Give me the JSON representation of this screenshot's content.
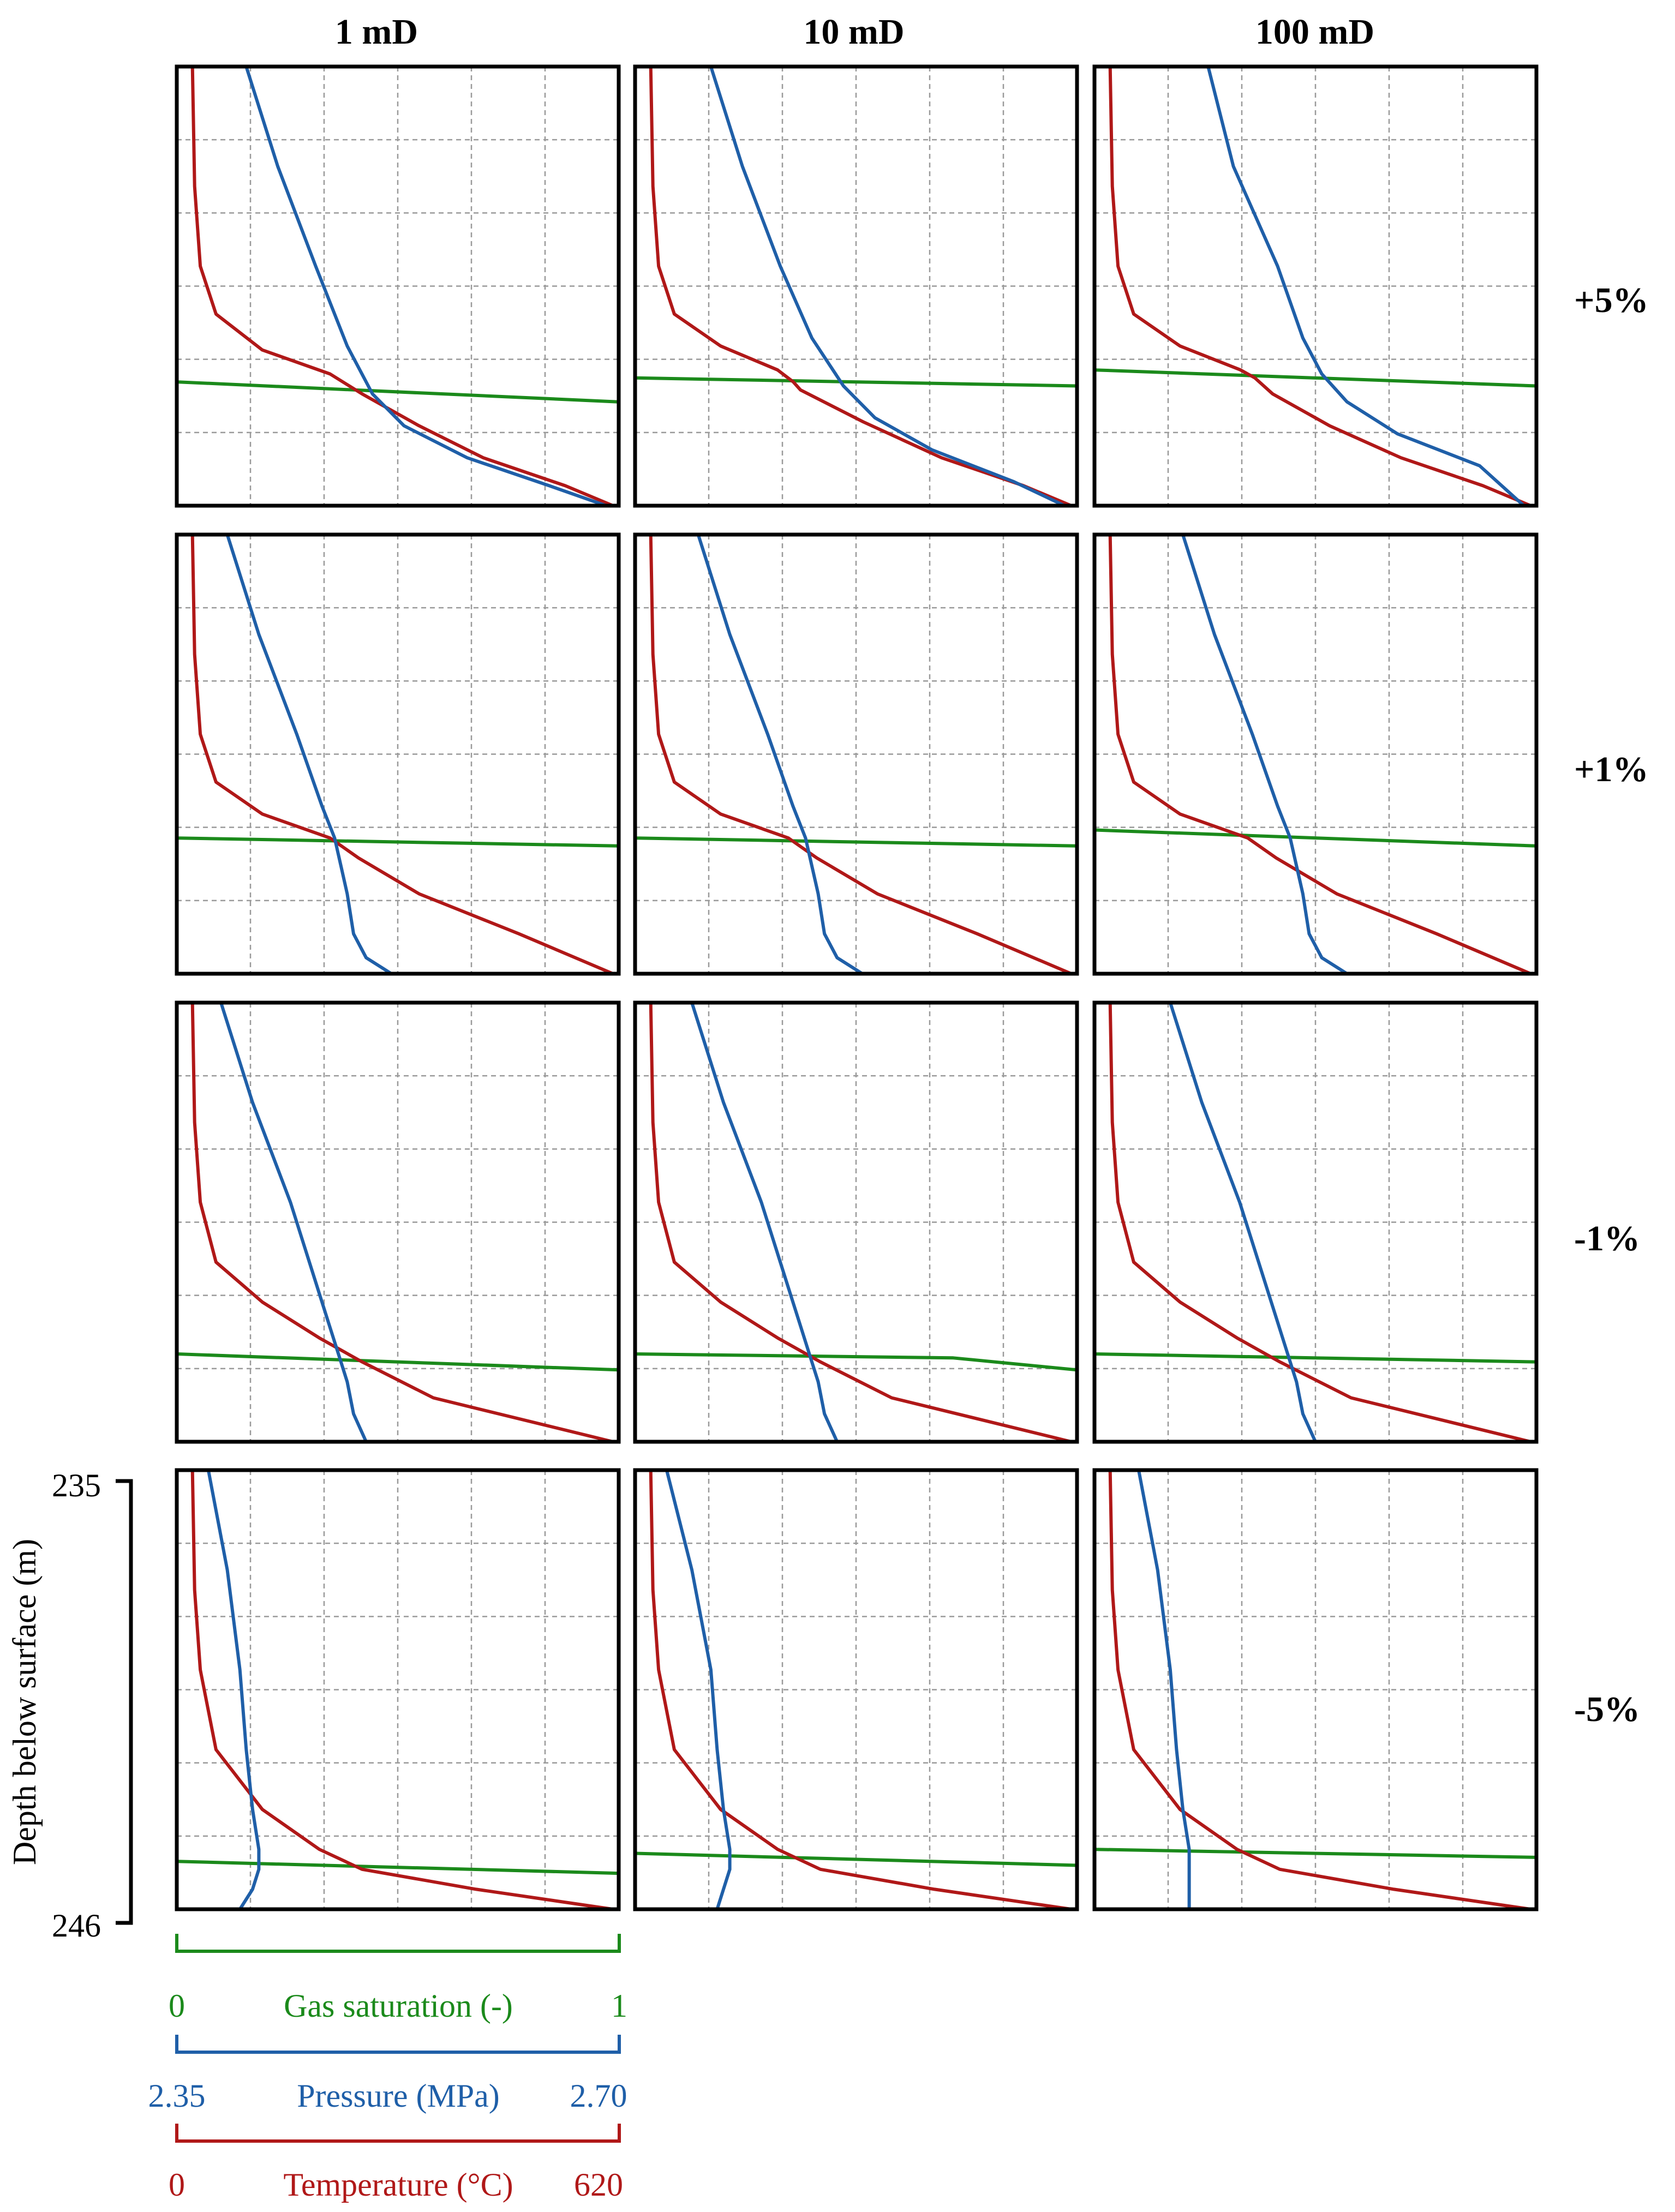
{
  "figure": {
    "columns": [
      "1 mD",
      "10 mD",
      "100 mD"
    ],
    "rows": [
      "+5%",
      "+1%",
      "-1%",
      "-5%"
    ],
    "y_axis": {
      "label": "Depth below surface (m)",
      "top_tick": "235",
      "bottom_tick": "246",
      "range": [
        235,
        246
      ]
    },
    "legend": {
      "gas": {
        "label": "Gas saturation (-)",
        "min": "0",
        "max": "1"
      },
      "pressure": {
        "label": "Pressure (MPa)",
        "min": "2.35",
        "max": "2.70"
      },
      "temperature": {
        "label": "Temperature (°C)",
        "min": "0",
        "max": "620"
      }
    },
    "colors": {
      "gas": "#1b8a1b",
      "pressure": "#1f5fa8",
      "temperature": "#b01818",
      "grid": "#9a9a9a",
      "frame": "#000000"
    }
  },
  "chart_data": {
    "type": "line",
    "title": "",
    "ylabel": "Depth below surface (m)",
    "ylim": [
      235,
      246
    ],
    "x_axes": {
      "gas_saturation": [
        0,
        1
      ],
      "pressure_MPa": [
        2.35,
        2.7
      ],
      "temperature_C": [
        0,
        620
      ]
    },
    "panels": [
      {
        "column": "1 mD",
        "row": "+5%",
        "gas_saturation": {
          "depth": [
            235,
            242.9,
            243.4,
            246
          ],
          "values": [
            0,
            0,
            1,
            1
          ]
        },
        "pressure": {
          "depth": [
            235,
            237.5,
            240,
            242.0,
            243.2,
            244.0,
            244.8,
            245.5,
            246
          ],
          "values": [
            2.405,
            2.43,
            2.46,
            2.485,
            2.505,
            2.53,
            2.58,
            2.645,
            2.69
          ]
        },
        "temperature": {
          "depth": [
            235,
            238,
            240,
            241.2,
            242.1,
            242.7,
            243.2,
            244.0,
            244.8,
            245.5,
            246
          ],
          "values": [
            22,
            25,
            33,
            55,
            120,
            215,
            260,
            340,
            430,
            545,
            612
          ]
        }
      },
      {
        "column": "10 mD",
        "row": "+5%",
        "gas_saturation": {
          "depth": [
            235,
            242.8,
            243.0,
            246
          ],
          "values": [
            0,
            0,
            1,
            1
          ]
        },
        "pressure": {
          "depth": [
            235,
            237.5,
            240,
            241.8,
            243.0,
            243.8,
            244.6,
            245.4,
            246
          ],
          "values": [
            2.41,
            2.435,
            2.465,
            2.49,
            2.515,
            2.54,
            2.585,
            2.65,
            2.69
          ]
        },
        "temperature": {
          "depth": [
            235,
            238,
            240,
            241.2,
            242.0,
            242.6,
            242.9,
            243.1,
            243.9,
            244.8,
            245.5,
            246
          ],
          "values": [
            22,
            25,
            33,
            55,
            120,
            200,
            222,
            232,
            320,
            430,
            545,
            612
          ]
        }
      },
      {
        "column": "100 mD",
        "row": "+5%",
        "gas_saturation": {
          "depth": [
            235,
            242.6,
            243.0,
            246
          ],
          "values": [
            0,
            0,
            1,
            1
          ]
        },
        "pressure": {
          "depth": [
            235,
            237.5,
            240,
            241.8,
            242.7,
            243.4,
            244.2,
            245.0,
            246
          ],
          "values": [
            2.44,
            2.46,
            2.495,
            2.515,
            2.53,
            2.55,
            2.59,
            2.655,
            2.69
          ]
        },
        "temperature": {
          "depth": [
            235,
            238,
            240,
            241.2,
            242.0,
            242.6,
            242.8,
            243.2,
            244.0,
            244.8,
            245.5,
            246
          ],
          "values": [
            22,
            25,
            33,
            55,
            120,
            205,
            225,
            250,
            330,
            430,
            545,
            612
          ]
        }
      },
      {
        "column": "1 mD",
        "row": "+1%",
        "gas_saturation": {
          "depth": [
            235,
            242.6,
            242.8,
            246
          ],
          "values": [
            0,
            0,
            1,
            1
          ]
        },
        "pressure": {
          "depth": [
            235,
            237.5,
            240,
            241.8,
            242.6,
            243.3,
            244.0,
            245.0,
            245.6,
            246
          ],
          "values": [
            2.39,
            2.415,
            2.445,
            2.465,
            2.475,
            2.48,
            2.485,
            2.49,
            2.5,
            2.52
          ]
        },
        "temperature": {
          "depth": [
            235,
            238,
            240,
            241.2,
            242.0,
            242.6,
            243.1,
            244.0,
            245.0,
            246
          ],
          "values": [
            22,
            25,
            33,
            55,
            120,
            215,
            255,
            340,
            480,
            612
          ]
        }
      },
      {
        "column": "10 mD",
        "row": "+1%",
        "gas_saturation": {
          "depth": [
            235,
            242.6,
            242.8,
            246
          ],
          "values": [
            0,
            0,
            1,
            1
          ]
        },
        "pressure": {
          "depth": [
            235,
            237.5,
            240,
            241.8,
            242.6,
            243.3,
            244.0,
            245.0,
            245.6,
            246
          ],
          "values": [
            2.4,
            2.425,
            2.455,
            2.475,
            2.485,
            2.49,
            2.495,
            2.5,
            2.51,
            2.53
          ]
        },
        "temperature": {
          "depth": [
            235,
            238,
            240,
            241.2,
            242.0,
            242.6,
            243.1,
            244.0,
            245.0,
            246
          ],
          "values": [
            22,
            25,
            33,
            55,
            120,
            215,
            255,
            340,
            480,
            612
          ]
        }
      },
      {
        "column": "100 mD",
        "row": "+1%",
        "gas_saturation": {
          "depth": [
            235,
            242.4,
            242.8,
            246
          ],
          "values": [
            0,
            0,
            1,
            1
          ]
        },
        "pressure": {
          "depth": [
            235,
            237.5,
            240,
            241.8,
            242.6,
            243.3,
            244.0,
            245.0,
            245.6,
            246
          ],
          "values": [
            2.42,
            2.445,
            2.475,
            2.495,
            2.505,
            2.51,
            2.515,
            2.52,
            2.53,
            2.55
          ]
        },
        "temperature": {
          "depth": [
            235,
            238,
            240,
            241.2,
            242.0,
            242.6,
            243.1,
            244.0,
            245.0,
            246
          ],
          "values": [
            22,
            25,
            33,
            55,
            120,
            215,
            255,
            340,
            480,
            612
          ]
        }
      },
      {
        "column": "1 mD",
        "row": "-1%",
        "gas_saturation": {
          "depth": [
            235,
            243.8,
            244.2,
            246
          ],
          "values": [
            0,
            0,
            1,
            1
          ]
        },
        "pressure": {
          "depth": [
            235,
            237.5,
            240,
            242.0,
            243.0,
            244.0,
            244.5,
            245.3,
            246
          ],
          "values": [
            2.385,
            2.41,
            2.44,
            2.46,
            2.47,
            2.48,
            2.485,
            2.49,
            2.5
          ]
        },
        "temperature": {
          "depth": [
            235,
            238,
            240,
            241.5,
            242.5,
            243.4,
            244.0,
            244.9,
            246
          ],
          "values": [
            22,
            25,
            33,
            55,
            120,
            200,
            260,
            360,
            612
          ]
        }
      },
      {
        "column": "10 mD",
        "row": "-1%",
        "gas_saturation": {
          "depth": [
            235,
            243.8,
            243.9,
            244.2,
            246
          ],
          "values": [
            0,
            0,
            0.72,
            1,
            1
          ]
        },
        "pressure": {
          "depth": [
            235,
            237.5,
            240,
            242.0,
            243.0,
            244.0,
            244.5,
            245.3,
            246
          ],
          "values": [
            2.395,
            2.42,
            2.45,
            2.47,
            2.48,
            2.49,
            2.495,
            2.5,
            2.51
          ]
        },
        "temperature": {
          "depth": [
            235,
            238,
            240,
            241.5,
            242.5,
            243.4,
            244.0,
            244.9,
            246
          ],
          "values": [
            22,
            25,
            33,
            55,
            120,
            200,
            260,
            360,
            612
          ]
        }
      },
      {
        "column": "100 mD",
        "row": "-1%",
        "gas_saturation": {
          "depth": [
            235,
            243.8,
            244.0,
            246
          ],
          "values": [
            0,
            0,
            1,
            1
          ]
        },
        "pressure": {
          "depth": [
            235,
            237.5,
            240,
            242.0,
            243.0,
            244.0,
            244.5,
            245.3,
            246
          ],
          "values": [
            2.41,
            2.435,
            2.465,
            2.485,
            2.495,
            2.505,
            2.51,
            2.515,
            2.525
          ]
        },
        "temperature": {
          "depth": [
            235,
            238,
            240,
            241.5,
            242.5,
            243.4,
            244.0,
            244.9,
            246
          ],
          "values": [
            22,
            25,
            33,
            55,
            120,
            200,
            260,
            360,
            612
          ]
        }
      },
      {
        "column": "1 mD",
        "row": "-5%",
        "gas_saturation": {
          "depth": [
            235,
            244.8,
            245.1,
            246
          ],
          "values": [
            0,
            0,
            1,
            1
          ]
        },
        "pressure": {
          "depth": [
            235,
            237.5,
            240,
            242.0,
            243.5,
            244.5,
            245.0,
            245.5,
            246
          ],
          "values": [
            2.375,
            2.39,
            2.4,
            2.405,
            2.41,
            2.415,
            2.415,
            2.41,
            2.4
          ]
        },
        "temperature": {
          "depth": [
            235,
            238,
            240,
            242.0,
            243.5,
            244.5,
            245.0,
            245.5,
            246
          ],
          "values": [
            22,
            25,
            33,
            55,
            120,
            200,
            260,
            420,
            612
          ]
        }
      },
      {
        "column": "10 mD",
        "row": "-5%",
        "gas_saturation": {
          "depth": [
            235,
            244.6,
            244.9,
            246
          ],
          "values": [
            0,
            0,
            1,
            1
          ]
        },
        "pressure": {
          "depth": [
            235,
            237.5,
            240,
            242.0,
            243.5,
            244.5,
            245.0,
            245.5,
            246
          ],
          "values": [
            2.375,
            2.395,
            2.41,
            2.415,
            2.42,
            2.425,
            2.425,
            2.42,
            2.415
          ]
        },
        "temperature": {
          "depth": [
            235,
            238,
            240,
            242.0,
            243.5,
            244.5,
            245.0,
            245.5,
            246
          ],
          "values": [
            22,
            25,
            33,
            55,
            120,
            200,
            260,
            420,
            612
          ]
        }
      },
      {
        "column": "100 mD",
        "row": "-5%",
        "gas_saturation": {
          "depth": [
            235,
            244.5,
            244.7,
            246
          ],
          "values": [
            0,
            0,
            1,
            1
          ]
        },
        "pressure": {
          "depth": [
            235,
            237.5,
            240,
            242.0,
            243.5,
            244.5,
            245.0,
            245.5,
            246
          ],
          "values": [
            2.385,
            2.4,
            2.41,
            2.415,
            2.42,
            2.425,
            2.425,
            2.425,
            2.425
          ]
        },
        "temperature": {
          "depth": [
            235,
            238,
            240,
            242.0,
            243.5,
            244.5,
            245.0,
            245.5,
            246
          ],
          "values": [
            22,
            25,
            33,
            55,
            120,
            200,
            260,
            420,
            612
          ]
        }
      }
    ]
  }
}
